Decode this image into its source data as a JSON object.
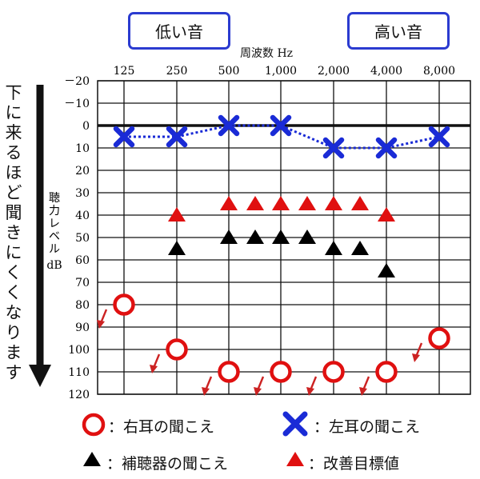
{
  "tags": {
    "low": "低い音",
    "high": "高い音"
  },
  "side_caption": "下に来るほど聞きにくくなります",
  "legend": {
    "right_ear": "：右耳の聞こえ",
    "left_ear": "：左耳の聞こえ",
    "hearing_aid": "：補聴器の聞こえ",
    "target": "：改善目標値"
  },
  "colors": {
    "right_ear": "#e01010",
    "left_ear": "#1a2bd6",
    "hearing_aid": "#000000",
    "target": "#e01010",
    "arrow": "#cc2222",
    "tag_border": "#2b3bd0"
  },
  "chart_data": {
    "type": "scatter",
    "xlabel": "周波数 Hz",
    "ylabel": "聴力レベル dB",
    "x_tick_labels": [
      "125",
      "250",
      "500",
      "1,000",
      "2,000",
      "4,000",
      "8,000"
    ],
    "y_ticks": [
      -20,
      -10,
      0,
      10,
      20,
      30,
      40,
      50,
      60,
      70,
      80,
      90,
      100,
      110,
      120
    ],
    "y_tick_labels": [
      "－20",
      "－10",
      "0",
      "10",
      "20",
      "30",
      "40",
      "50",
      "60",
      "70",
      "80",
      "90",
      "100",
      "110",
      "120"
    ],
    "ylim": [
      -20,
      120
    ],
    "y_inverted": true,
    "series": [
      {
        "name": "左耳の聞こえ",
        "marker": "cross",
        "line": "dotted",
        "x": [
          "125",
          "250",
          "500",
          "1,000",
          "2,000",
          "4,000",
          "8,000"
        ],
        "values": [
          5,
          5,
          0,
          0,
          10,
          10,
          5
        ]
      },
      {
        "name": "右耳の聞こえ",
        "marker": "circle",
        "scale_out_arrow": true,
        "x": [
          "125",
          "250",
          "500",
          "1,000",
          "2,000",
          "4,000",
          "8,000"
        ],
        "values": [
          80,
          100,
          110,
          110,
          110,
          110,
          95
        ]
      },
      {
        "name": "補聴器の聞こえ",
        "marker": "triangle",
        "x": [
          "250",
          "500",
          "750",
          "1,000",
          "1,500",
          "2,000",
          "3,000",
          "4,000"
        ],
        "values": [
          55,
          50,
          50,
          50,
          50,
          55,
          55,
          65
        ]
      },
      {
        "name": "改善目標値",
        "marker": "triangle",
        "x": [
          "250",
          "500",
          "750",
          "1,000",
          "1,500",
          "2,000",
          "3,000",
          "4,000"
        ],
        "values": [
          40,
          35,
          35,
          35,
          35,
          35,
          35,
          40
        ]
      }
    ]
  }
}
